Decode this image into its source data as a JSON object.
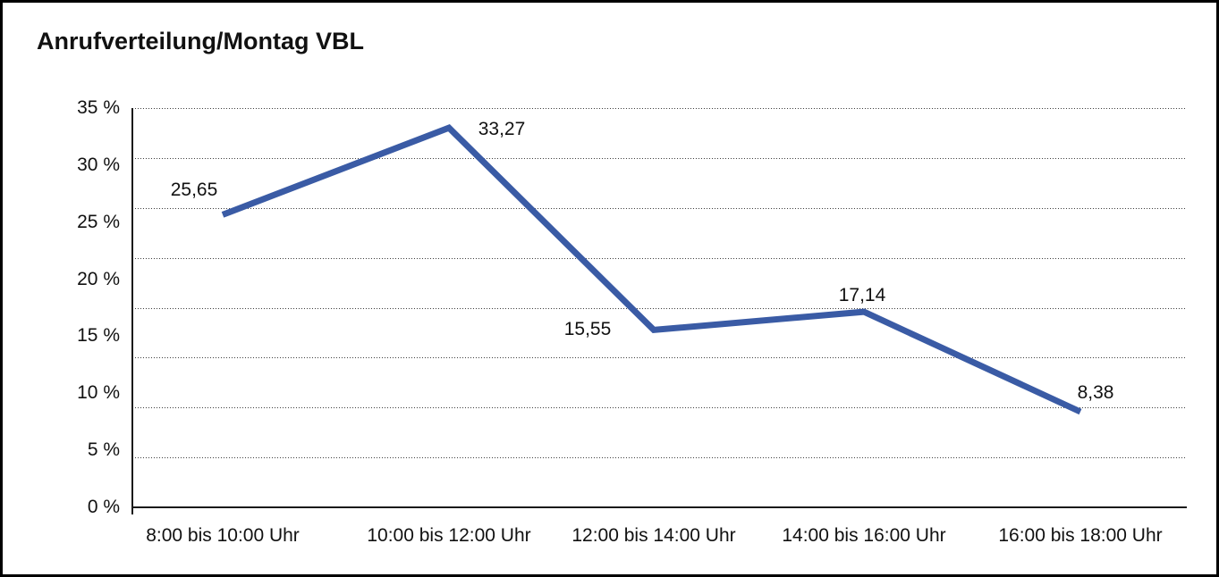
{
  "page": {
    "title": "Anrufverteilung/Montag VBL"
  },
  "chart_data": {
    "type": "line",
    "title": "Anrufverteilung/Montag VBL",
    "categories": [
      "8:00 bis 10:00 Uhr",
      "10:00 bis 12:00 Uhr",
      "12:00 bis 14:00 Uhr",
      "14:00 bis 16:00 Uhr",
      "16:00 bis 18:00 Uhr"
    ],
    "values": [
      25.65,
      33.27,
      15.55,
      17.14,
      8.38
    ],
    "point_labels": [
      "25,65",
      "33,27",
      "15,55",
      "17,14",
      "8,38"
    ],
    "xlabel": "",
    "ylabel": "",
    "ylim": [
      0,
      35
    ],
    "ytick_labels": [
      "35 %",
      "30 %",
      "25 %",
      "20 %",
      "15 %",
      "10 %",
      "5 %",
      "0 %"
    ],
    "grid": "horizontal-dotted",
    "legend": "none",
    "line_color": "#3A5BA5",
    "axis_color": "#1a1a1a",
    "decimal_style": "comma"
  }
}
